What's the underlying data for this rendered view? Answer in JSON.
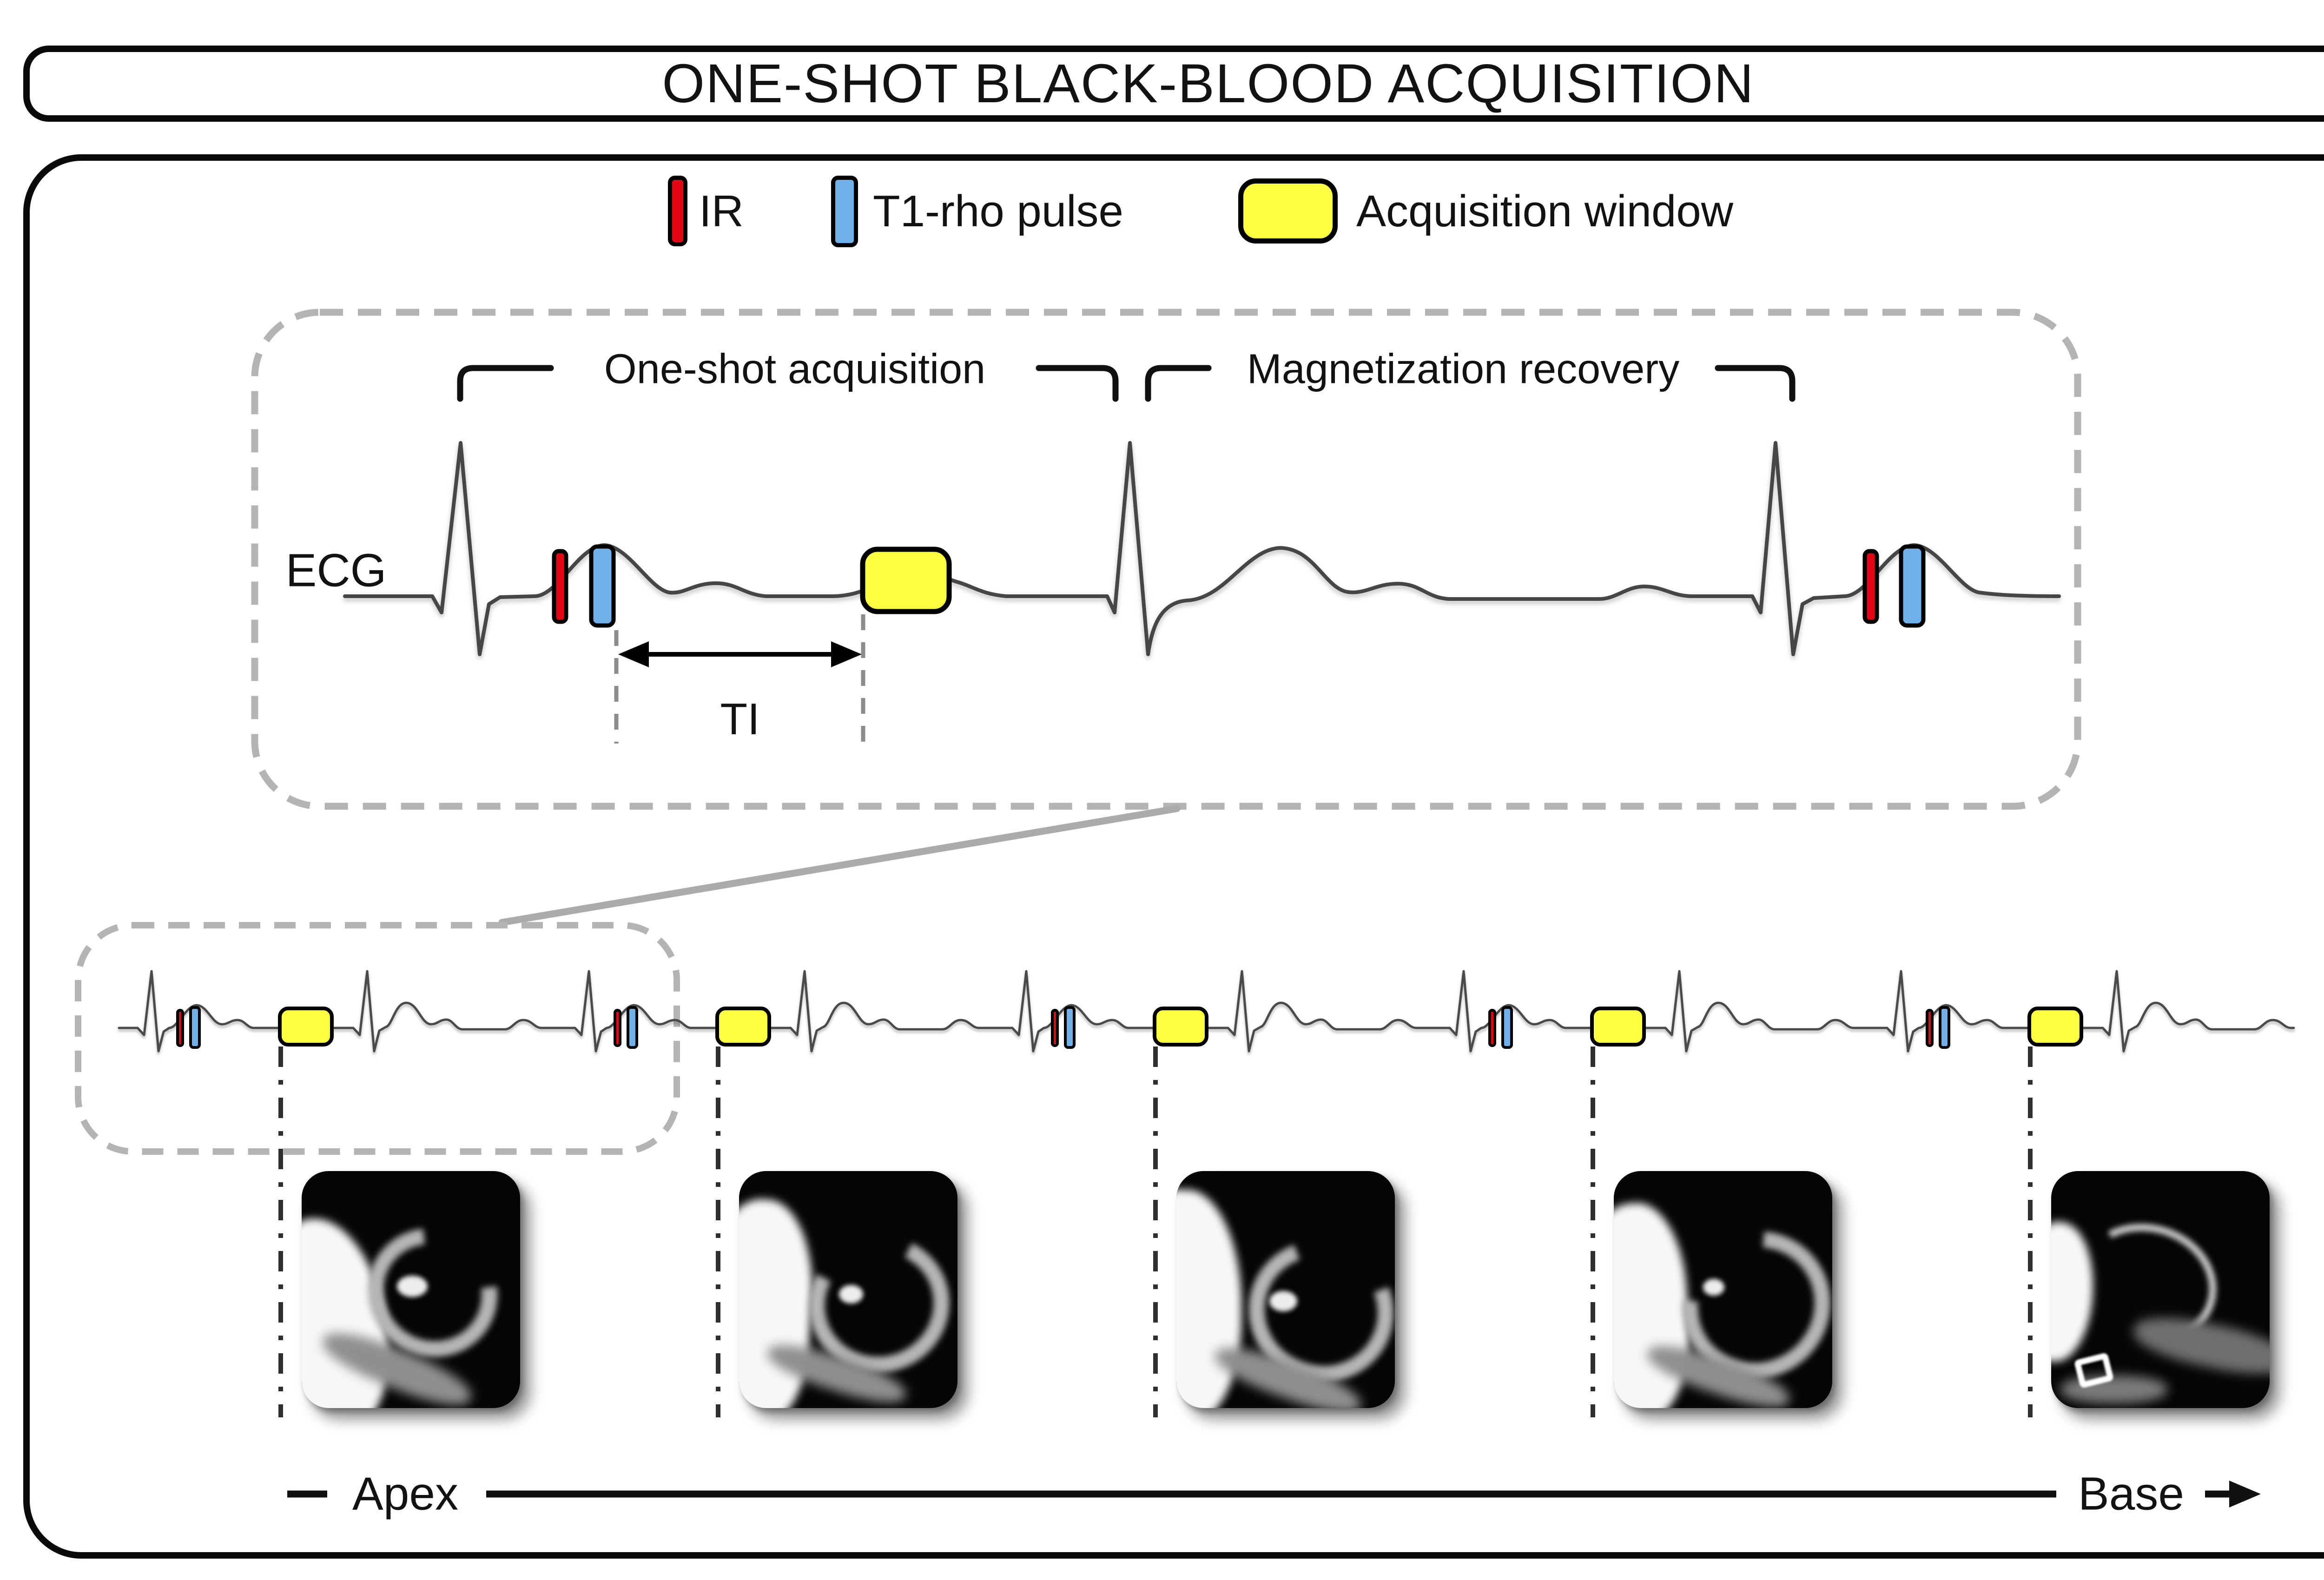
{
  "title": "ONE-SHOT BLACK-BLOOD ACQUISITION",
  "legend": {
    "ir": {
      "label": "IR",
      "color": "#e30613",
      "swatch": "ir-pulse-bar"
    },
    "t1rho": {
      "label": "T1-rho pulse",
      "color": "#6fb1e8",
      "swatch": "t1rho-pulse-bar"
    },
    "acq": {
      "label": "Acquisition window",
      "color": "#fcff3f",
      "swatch": "acquisition-window-box"
    }
  },
  "inset": {
    "ecg_label": "ECG",
    "oneshot_label": "One-shot acquisition",
    "recovery_label": "Magnetization recovery",
    "ti_label": "TI"
  },
  "slice_axis": {
    "start_label": "Apex",
    "end_label": "Base",
    "direction_icon": "right-arrow"
  },
  "mri_slices": {
    "count": 5,
    "names": [
      "slice-1-apex",
      "slice-2",
      "slice-3-mid",
      "slice-4",
      "slice-5-base"
    ]
  },
  "acquisition_windows_per_strip": 5,
  "colors": {
    "dashed_outline_gray": "#b4b4b4",
    "ecg_trace_gray": "#464646",
    "panel_border_black": "#0a0a0a"
  }
}
